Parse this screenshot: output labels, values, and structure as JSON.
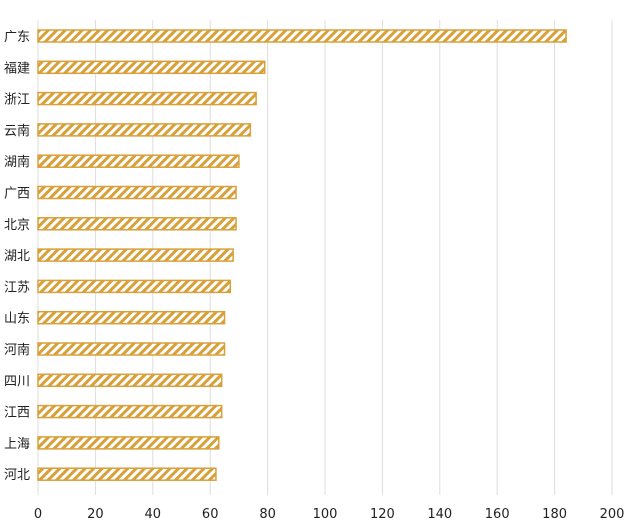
{
  "chart_data": {
    "type": "bar",
    "orientation": "horizontal",
    "title": "",
    "xlabel": "",
    "ylabel": "",
    "categories": [
      "广东",
      "福建",
      "浙江",
      "云南",
      "湖南",
      "广西",
      "北京",
      "湖北",
      "江苏",
      "山东",
      "河南",
      "四川",
      "江西",
      "上海",
      "河北"
    ],
    "values": [
      184,
      79,
      76,
      74,
      70,
      69,
      69,
      68,
      67,
      65,
      65,
      64,
      64,
      63,
      62
    ],
    "xlim": [
      0,
      200
    ],
    "xticks": [
      "0",
      "20",
      "40",
      "60",
      "80",
      "100",
      "120",
      "140",
      "160",
      "180",
      "200"
    ],
    "grid": true,
    "legend": "none",
    "bar_color": "#d8a03a",
    "bar_pattern": "diagonal-hatch"
  }
}
